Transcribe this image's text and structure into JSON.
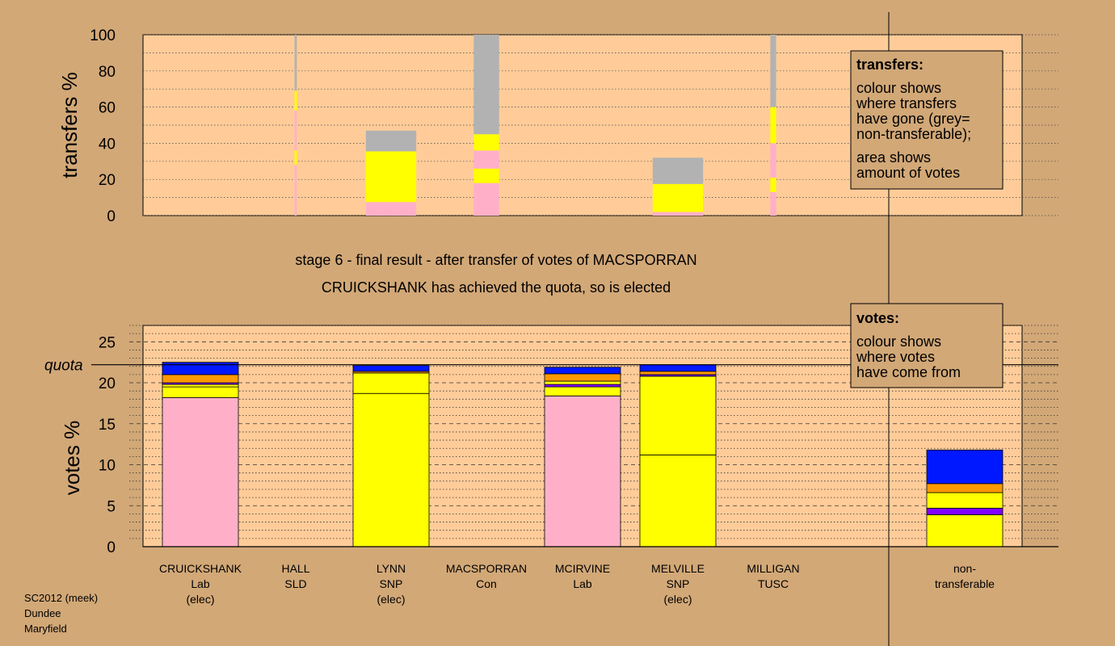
{
  "captions": {
    "line1": "stage 6 - final result - after transfer of votes of MACSPORRAN",
    "line2": "CRUICKSHANK has achieved the quota, so is elected"
  },
  "footer": [
    "SC2012 (meek)",
    "Dundee",
    "Maryfield"
  ],
  "legend_top": {
    "title": "transfers:",
    "lines": [
      "colour shows",
      "where transfers",
      "have gone (grey=",
      "non-transferable);",
      "area shows",
      "amount of votes"
    ]
  },
  "legend_bottom": {
    "title": "votes:",
    "lines": [
      "colour shows",
      "where votes",
      "have come from"
    ]
  },
  "colors": {
    "pink": "#ffb0c8",
    "yellow": "#ffff00",
    "grey": "#b2b2b2",
    "orange": "#ff9900",
    "blue": "#0018ff",
    "purple": "#8000ff",
    "background": "#d2a877",
    "plot_bg": "#ffcc99"
  },
  "candidates": [
    {
      "name": "CRUICKSHANK",
      "party": "Lab",
      "status": "(elec)"
    },
    {
      "name": "HALL",
      "party": "SLD",
      "status": ""
    },
    {
      "name": "LYNN",
      "party": "SNP",
      "status": "(elec)"
    },
    {
      "name": "MACSPORRAN",
      "party": "Con",
      "status": ""
    },
    {
      "name": "MCIRVINE",
      "party": "Lab",
      "status": ""
    },
    {
      "name": "MELVILLE",
      "party": "SNP",
      "status": "(elec)"
    },
    {
      "name": "MILLIGAN",
      "party": "TUSC",
      "status": ""
    },
    {
      "name": "non-",
      "party": "transferable",
      "status": ""
    }
  ],
  "chart_data": [
    {
      "type": "bar",
      "stacked": true,
      "ylabel": "transfers %",
      "ylim": [
        0,
        100
      ],
      "yticks": [
        0,
        20,
        40,
        60,
        80,
        100
      ],
      "grid": "dotted horizontal",
      "bars": [
        {
          "candidate": "CRUICKSHANK",
          "segments": []
        },
        {
          "candidate": "HALL",
          "width_share": 0.02,
          "segments": [
            {
              "color": "pink",
              "from": 0,
              "to": 28
            },
            {
              "color": "yellow",
              "from": 28,
              "to": 36
            },
            {
              "color": "pink",
              "from": 36,
              "to": 58
            },
            {
              "color": "yellow",
              "from": 58,
              "to": 69
            },
            {
              "color": "grey",
              "from": 69,
              "to": 100
            }
          ]
        },
        {
          "candidate": "LYNN",
          "width_share": 0.54,
          "segments": [
            {
              "color": "pink",
              "from": 0,
              "to": 7.5
            },
            {
              "color": "yellow",
              "from": 7.5,
              "to": 35.5
            },
            {
              "color": "grey",
              "from": 35.5,
              "to": 47
            }
          ]
        },
        {
          "candidate": "MACSPORRAN",
          "width_share": 0.22,
          "segments": [
            {
              "color": "pink",
              "from": 0,
              "to": 18
            },
            {
              "color": "yellow",
              "from": 18,
              "to": 26
            },
            {
              "color": "pink",
              "from": 26,
              "to": 36
            },
            {
              "color": "yellow",
              "from": 36,
              "to": 45
            },
            {
              "color": "grey",
              "from": 45,
              "to": 100
            }
          ]
        },
        {
          "candidate": "MCIRVINE",
          "segments": []
        },
        {
          "candidate": "MELVILLE",
          "width_share": 0.54,
          "segments": [
            {
              "color": "pink",
              "from": 0,
              "to": 2
            },
            {
              "color": "yellow",
              "from": 2,
              "to": 17.5
            },
            {
              "color": "grey",
              "from": 17.5,
              "to": 20.5
            },
            {
              "color": "grey",
              "from": 20.5,
              "to": 32
            }
          ]
        },
        {
          "candidate": "MILLIGAN",
          "width_share": 0.05,
          "segments": [
            {
              "color": "pink",
              "from": 0,
              "to": 13
            },
            {
              "color": "yellow",
              "from": 13,
              "to": 21
            },
            {
              "color": "pink",
              "from": 21,
              "to": 40
            },
            {
              "color": "yellow",
              "from": 40,
              "to": 60
            },
            {
              "color": "grey",
              "from": 60,
              "to": 100
            }
          ]
        }
      ]
    },
    {
      "type": "bar",
      "stacked": true,
      "ylabel": "votes %",
      "ylim": [
        0,
        27
      ],
      "yticks": [
        0,
        5,
        10,
        15,
        20,
        25
      ],
      "quota": 22.2,
      "quota_label": "quota",
      "grid": "dashed at ticks, dotted between",
      "bars": [
        {
          "candidate": "CRUICKSHANK",
          "segments": [
            {
              "color": "pink",
              "from": 0,
              "to": 18.2
            },
            {
              "color": "yellow",
              "from": 18.2,
              "to": 19.5
            },
            {
              "color": "yellow",
              "from": 19.5,
              "to": 19.8
            },
            {
              "color": "purple",
              "from": 19.8,
              "to": 20.0
            },
            {
              "color": "orange",
              "from": 20.0,
              "to": 21.0
            },
            {
              "color": "blue",
              "from": 21.0,
              "to": 22.5
            }
          ]
        },
        {
          "candidate": "HALL",
          "segments": []
        },
        {
          "candidate": "LYNN",
          "segments": [
            {
              "color": "yellow",
              "from": 0,
              "to": 18.7
            },
            {
              "color": "yellow",
              "from": 18.7,
              "to": 21.2
            },
            {
              "color": "orange",
              "from": 21.2,
              "to": 21.4
            },
            {
              "color": "blue",
              "from": 21.4,
              "to": 22.1
            }
          ]
        },
        {
          "candidate": "MACSPORRAN",
          "segments": []
        },
        {
          "candidate": "MCIRVINE",
          "segments": [
            {
              "color": "pink",
              "from": 0,
              "to": 18.4
            },
            {
              "color": "yellow",
              "from": 18.4,
              "to": 19.5
            },
            {
              "color": "purple",
              "from": 19.5,
              "to": 19.8
            },
            {
              "color": "yellow",
              "from": 19.8,
              "to": 20.2
            },
            {
              "color": "orange",
              "from": 20.2,
              "to": 21.1
            },
            {
              "color": "blue",
              "from": 21.1,
              "to": 21.9
            }
          ]
        },
        {
          "candidate": "MELVILLE",
          "segments": [
            {
              "color": "yellow",
              "from": 0,
              "to": 11.2
            },
            {
              "color": "yellow",
              "from": 11.2,
              "to": 20.8
            },
            {
              "color": "purple",
              "from": 20.8,
              "to": 21.0
            },
            {
              "color": "orange",
              "from": 21.0,
              "to": 21.4
            },
            {
              "color": "blue",
              "from": 21.4,
              "to": 22.2
            }
          ]
        },
        {
          "candidate": "MILLIGAN",
          "segments": []
        },
        {
          "candidate": "non-transferable",
          "segments": [
            {
              "color": "yellow",
              "from": 0,
              "to": 3.9
            },
            {
              "color": "purple",
              "from": 3.9,
              "to": 4.7
            },
            {
              "color": "yellow",
              "from": 4.7,
              "to": 6.6
            },
            {
              "color": "orange",
              "from": 6.6,
              "to": 7.7
            },
            {
              "color": "blue",
              "from": 7.7,
              "to": 11.8
            }
          ]
        }
      ]
    }
  ]
}
